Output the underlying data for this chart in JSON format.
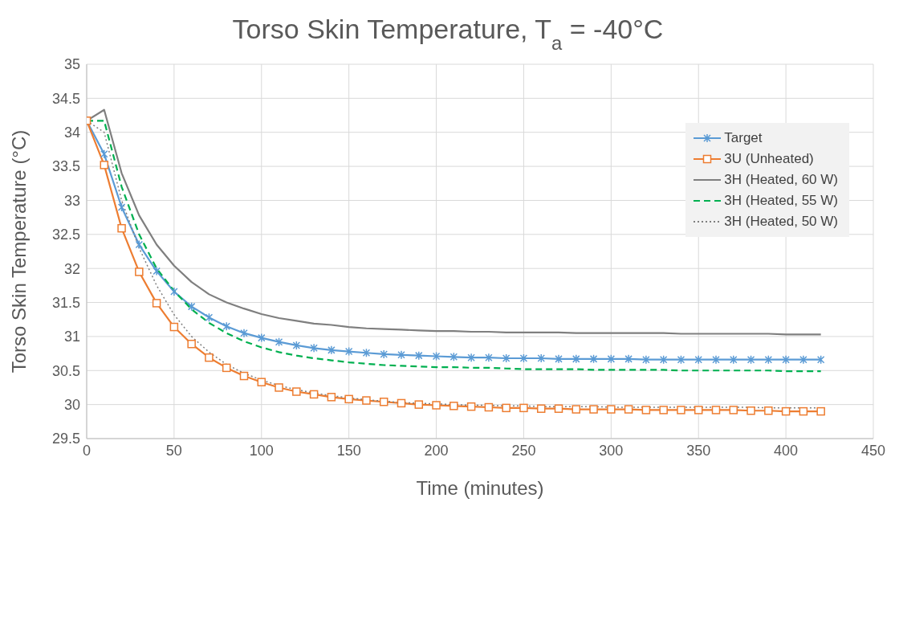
{
  "chart_data": {
    "type": "line",
    "title": "Torso Skin Temperature, T$_{a}$ = -40°C",
    "xlabel": "Time (minutes)",
    "ylabel": "Torso Skin Temperature (°C)",
    "x": [
      0,
      10,
      20,
      30,
      40,
      50,
      60,
      70,
      80,
      90,
      100,
      110,
      120,
      130,
      140,
      150,
      160,
      170,
      180,
      190,
      200,
      210,
      220,
      230,
      240,
      250,
      260,
      270,
      280,
      290,
      300,
      310,
      320,
      330,
      340,
      350,
      360,
      370,
      380,
      390,
      400,
      410,
      420
    ],
    "xlim": [
      0,
      450
    ],
    "xticks": [
      0,
      50,
      100,
      150,
      200,
      250,
      300,
      350,
      400,
      450
    ],
    "ylim": [
      29.5,
      35
    ],
    "yticks": [
      29.5,
      30,
      30.5,
      31,
      31.5,
      32,
      32.5,
      33,
      33.5,
      34,
      34.5,
      35
    ],
    "grid": true,
    "legend": "top right",
    "series": [
      {
        "name": "Target",
        "color": "#5b9bd5",
        "marker": "cross",
        "line_style": "solid",
        "values": [
          34.17,
          33.68,
          32.9,
          32.35,
          31.96,
          31.66,
          31.44,
          31.28,
          31.15,
          31.05,
          30.98,
          30.92,
          30.87,
          30.83,
          30.8,
          30.78,
          30.76,
          30.74,
          30.73,
          30.72,
          30.71,
          30.7,
          30.69,
          30.69,
          30.68,
          30.68,
          30.68,
          30.67,
          30.67,
          30.67,
          30.67,
          30.67,
          30.66,
          30.66,
          30.66,
          30.66,
          30.66,
          30.66,
          30.66,
          30.66,
          30.66,
          30.66,
          30.66
        ]
      },
      {
        "name": "3U (Unheated)",
        "color": "#ed7d31",
        "marker": "square",
        "line_style": "solid",
        "values": [
          34.17,
          33.52,
          32.59,
          31.95,
          31.49,
          31.14,
          30.89,
          30.69,
          30.54,
          30.42,
          30.33,
          30.25,
          30.19,
          30.15,
          30.11,
          30.08,
          30.06,
          30.04,
          30.02,
          30.0,
          29.99,
          29.98,
          29.97,
          29.96,
          29.95,
          29.95,
          29.94,
          29.94,
          29.93,
          29.93,
          29.93,
          29.93,
          29.92,
          29.92,
          29.92,
          29.92,
          29.92,
          29.92,
          29.91,
          29.91,
          29.9,
          29.9,
          29.9
        ]
      },
      {
        "name": "3H (Heated, 60 W)",
        "color": "#7f7f7f",
        "marker": "none",
        "line_style": "solid",
        "values": [
          34.17,
          34.33,
          33.4,
          32.78,
          32.35,
          32.04,
          31.8,
          31.62,
          31.5,
          31.41,
          31.33,
          31.27,
          31.23,
          31.19,
          31.17,
          31.14,
          31.12,
          31.11,
          31.1,
          31.09,
          31.08,
          31.08,
          31.07,
          31.07,
          31.06,
          31.06,
          31.06,
          31.06,
          31.05,
          31.05,
          31.05,
          31.05,
          31.05,
          31.05,
          31.04,
          31.04,
          31.04,
          31.04,
          31.04,
          31.04,
          31.03,
          31.03,
          31.03
        ]
      },
      {
        "name": "3H (Heated, 55 W)",
        "color": "#00b050",
        "marker": "none",
        "line_style": "dashed",
        "values": [
          34.17,
          34.17,
          33.2,
          32.5,
          32.0,
          31.67,
          31.4,
          31.2,
          31.05,
          30.93,
          30.84,
          30.77,
          30.72,
          30.68,
          30.65,
          30.62,
          30.6,
          30.58,
          30.57,
          30.56,
          30.55,
          30.55,
          30.54,
          30.54,
          30.53,
          30.52,
          30.52,
          30.52,
          30.52,
          30.51,
          30.51,
          30.51,
          30.51,
          30.51,
          30.5,
          30.5,
          30.5,
          30.5,
          30.5,
          30.5,
          30.49,
          30.49,
          30.49
        ]
      },
      {
        "name": "3H (Heated, 50 W)",
        "color": "#7f7f7f",
        "marker": "none",
        "line_style": "dotted",
        "values": [
          34.17,
          34.0,
          33.0,
          32.3,
          31.75,
          31.32,
          31.0,
          30.77,
          30.59,
          30.46,
          30.36,
          30.28,
          30.22,
          30.17,
          30.13,
          30.1,
          30.07,
          30.05,
          30.03,
          30.02,
          30.01,
          30.0,
          29.99,
          29.99,
          29.98,
          29.98,
          29.97,
          29.97,
          29.97,
          29.97,
          29.96,
          29.96,
          29.96,
          29.96,
          29.96,
          29.96,
          29.96,
          29.96,
          29.96,
          29.95,
          29.95,
          29.95,
          29.95
        ]
      }
    ]
  }
}
